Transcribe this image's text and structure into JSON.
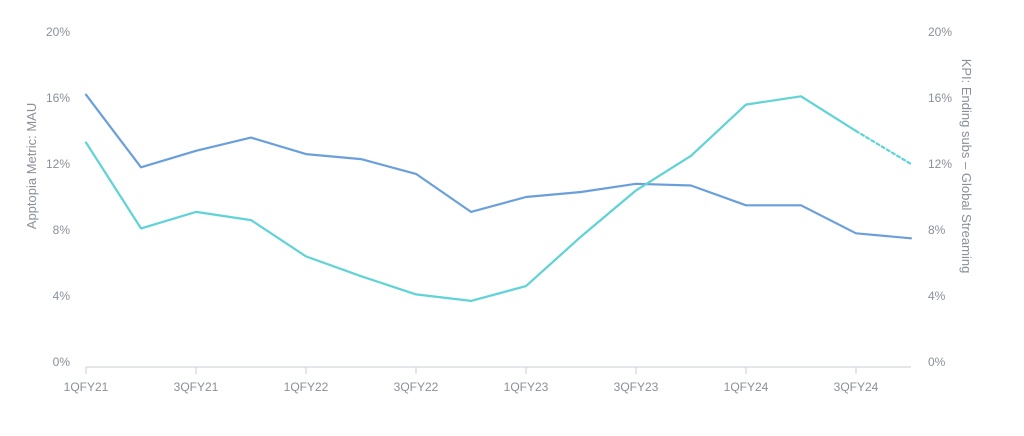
{
  "chart_data": {
    "type": "line",
    "title": "",
    "categories": [
      "1QFY21",
      "2QFY21",
      "3QFY21",
      "4QFY21",
      "1QFY22",
      "2QFY22",
      "3QFY22",
      "4QFY22",
      "1QFY23",
      "2QFY23",
      "3QFY23",
      "4QFY23",
      "1QFY24",
      "2QFY24",
      "3QFY24",
      "4QFY24"
    ],
    "x_tick_labels": [
      "1QFY21",
      "3QFY21",
      "1QFY22",
      "3QFY22",
      "1QFY23",
      "3QFY23",
      "1QFY24",
      "3QFY24"
    ],
    "y_left": {
      "label": "Apptopia Metric: MAU",
      "ticks": [
        "0%",
        "4%",
        "8%",
        "12%",
        "16%",
        "20%"
      ],
      "range": [
        0,
        20
      ]
    },
    "y_right": {
      "label": "KPI: Ending subs – Global Streaming",
      "ticks": [
        "0%",
        "4%",
        "8%",
        "12%",
        "16%",
        "20%"
      ],
      "range": [
        0,
        20
      ]
    },
    "series": [
      {
        "axis": "left",
        "color": "#6a9fdc",
        "values": [
          16.2,
          11.8,
          12.8,
          13.6,
          12.6,
          12.3,
          11.4,
          9.1,
          10.0,
          10.3,
          10.8,
          10.7,
          9.5,
          9.5,
          7.8,
          7.5
        ]
      },
      {
        "axis": "right",
        "color": "#5fd3d6",
        "dashed_from_index": 14,
        "values": [
          13.3,
          8.1,
          9.1,
          8.6,
          6.4,
          5.2,
          4.1,
          3.7,
          4.6,
          7.6,
          10.4,
          12.5,
          15.6,
          16.1,
          14.0,
          12.0
        ]
      }
    ],
    "grid": false,
    "legend": "none"
  }
}
